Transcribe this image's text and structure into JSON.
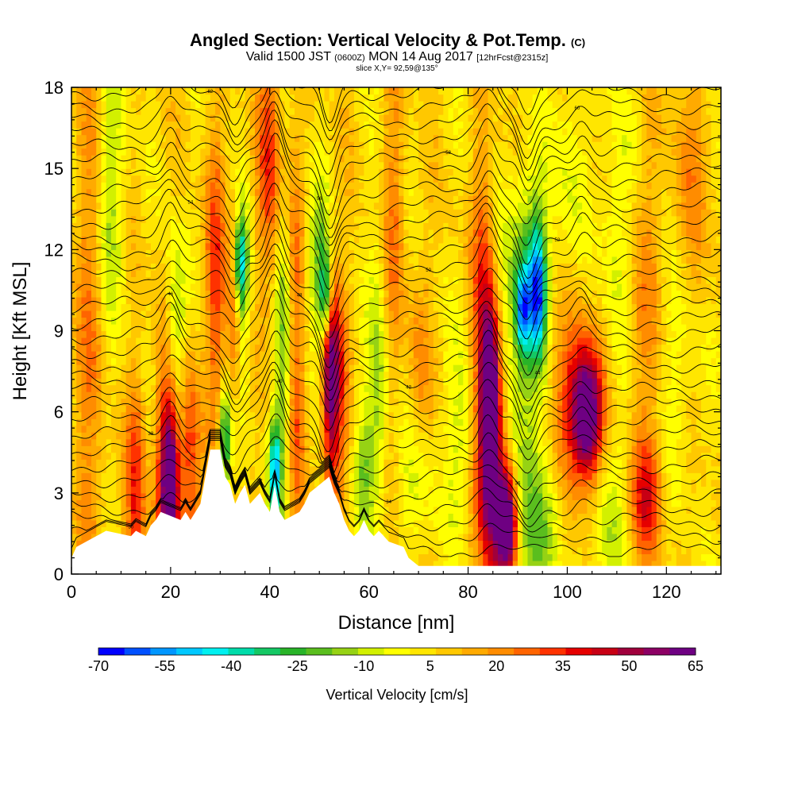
{
  "chart_data": {
    "type": "heatmap",
    "title": {
      "main": "Angled Section: Vertical Velocity & Pot.Temp.",
      "main_unit": "(C)",
      "valid_a": "Valid 1500 JST",
      "valid_b": "(0600Z)",
      "valid_c": "MON 14 Aug 2017",
      "valid_d": "[12hrFcst@2315z]",
      "slice": "slice X,Y= 92,59@135°"
    },
    "xlabel": "Distance [nm]",
    "ylabel": "Height [Kft MSL]",
    "xlim": [
      0,
      131
    ],
    "ylim": [
      0,
      18
    ],
    "x_ticks": [
      "0",
      "20",
      "40",
      "60",
      "80",
      "100",
      "120"
    ],
    "y_ticks": [
      "0",
      "3",
      "6",
      "9",
      "12",
      "15",
      "18"
    ],
    "colorbar": {
      "label": "Vertical Velocity [cm/s]",
      "tick_labels": [
        "-70",
        "-55",
        "-40",
        "-25",
        "-10",
        "5",
        "20",
        "35",
        "50",
        "65"
      ],
      "colors": [
        "#0000ff",
        "#0050ff",
        "#0096ff",
        "#00c8ff",
        "#00f0f0",
        "#00dcaa",
        "#14c864",
        "#28b428",
        "#5abe1e",
        "#96d214",
        "#d2f000",
        "#ffff00",
        "#ffe600",
        "#ffc800",
        "#ffaa00",
        "#ff8c00",
        "#ff6400",
        "#ff3200",
        "#e60000",
        "#c80014",
        "#a0003c",
        "#8c0064",
        "#6e0082"
      ]
    },
    "terrain_kft": [
      [
        0,
        0.6
      ],
      [
        1,
        1
      ],
      [
        5,
        1.4
      ],
      [
        7,
        1.6
      ],
      [
        12,
        1.4
      ],
      [
        13,
        1.6
      ],
      [
        15,
        1.4
      ],
      [
        16,
        1.8
      ],
      [
        17,
        2
      ],
      [
        18,
        2.3
      ],
      [
        22,
        2
      ],
      [
        23,
        2.3
      ],
      [
        24,
        2
      ],
      [
        26,
        2.6
      ],
      [
        27,
        3.6
      ],
      [
        28,
        4.6
      ],
      [
        30,
        4.6
      ],
      [
        31,
        3.6
      ],
      [
        32,
        3.3
      ],
      [
        33,
        2.6
      ],
      [
        34,
        3
      ],
      [
        35,
        3.3
      ],
      [
        36,
        2.6
      ],
      [
        38,
        3
      ],
      [
        39,
        2.6
      ],
      [
        40,
        2.3
      ],
      [
        41,
        3.3
      ],
      [
        42,
        2.3
      ],
      [
        43,
        2
      ],
      [
        46,
        2.3
      ],
      [
        47,
        2.6
      ],
      [
        48,
        3
      ],
      [
        50,
        3.3
      ],
      [
        52,
        3.6
      ],
      [
        53,
        3
      ],
      [
        54,
        2.6
      ],
      [
        55,
        2
      ],
      [
        56,
        1.6
      ],
      [
        57,
        1.4
      ],
      [
        58,
        1.6
      ],
      [
        59,
        2
      ],
      [
        60,
        1.6
      ],
      [
        61,
        1.4
      ],
      [
        62,
        1.6
      ],
      [
        63,
        1.4
      ],
      [
        64,
        1.2
      ],
      [
        67,
        1
      ],
      [
        68,
        0.6
      ],
      [
        70,
        0.3
      ],
      [
        131,
        0.3
      ]
    ],
    "isentrope_labels": [
      "30",
      "32",
      "34",
      "36",
      "38",
      "40",
      "42",
      "44",
      "46",
      "48",
      "50",
      "52",
      "54",
      "56",
      "58",
      "60",
      "62",
      "64"
    ],
    "series": [
      {
        "label": "ascent",
        "values_cm_s": [
          [
            [
              4,
              8.5
            ],
            [
              2.2,
              9
            ],
            15
          ],
          [
            [
              13,
              3
            ],
            [
              1.4,
              3
            ],
            28
          ],
          [
            [
              19,
              3.5
            ],
            [
              1.6,
              4
            ],
            32
          ],
          [
            [
              20,
              3.5
            ],
            [
              1.2,
              2
            ],
            48
          ],
          [
            [
              24,
              3.5
            ],
            [
              1.5,
              3.5
            ],
            30
          ],
          [
            [
              29,
              11
            ],
            [
              1.4,
              4
            ],
            24
          ],
          [
            [
              33,
              10
            ],
            [
              1.1,
              2.8
            ],
            36
          ],
          [
            [
              40,
              15
            ],
            [
              1.8,
              3
            ],
            26
          ],
          [
            [
              45,
              11.5
            ],
            [
              1.3,
              3.5
            ],
            18
          ],
          [
            [
              45,
              5.5
            ],
            [
              1.3,
              3
            ],
            20
          ],
          [
            [
              53,
              6.8
            ],
            [
              1.6,
              3.3
            ],
            36
          ],
          [
            [
              52,
              8.5
            ],
            [
              1,
              2.5
            ],
            44
          ],
          [
            [
              65,
              13
            ],
            [
              1.6,
              4
            ],
            16
          ],
          [
            [
              70,
              7
            ],
            [
              1.6,
              3
            ],
            14
          ],
          [
            [
              83,
              12
            ],
            [
              1.6,
              3
            ],
            18
          ],
          [
            [
              84,
              6.3
            ],
            [
              1.9,
              3
            ],
            48
          ],
          [
            [
              84.5,
              6
            ],
            [
              1,
              2
            ],
            60
          ],
          [
            [
              86,
              2.5
            ],
            [
              2.5,
              2.4
            ],
            40
          ],
          [
            [
              88,
              1.9
            ],
            [
              1.4,
              1.3
            ],
            62
          ],
          [
            [
              103,
              6
            ],
            [
              4,
              2.5
            ],
            36
          ],
          [
            [
              104,
              5.8
            ],
            [
              2,
              1.5
            ],
            46
          ],
          [
            [
              116,
              2.8
            ],
            [
              2.2,
              1.6
            ],
            30
          ],
          [
            [
              115,
              10
            ],
            [
              3,
              4
            ],
            14
          ],
          [
            [
              125,
              14
            ],
            [
              3,
              4
            ],
            12
          ]
        ]
      },
      {
        "label": "descent",
        "values_cm_s": [
          [
            [
              8,
              14
            ],
            [
              2,
              4
            ],
            -18
          ],
          [
            [
              21,
              9
            ],
            [
              1.6,
              2.6
            ],
            -24
          ],
          [
            [
              31,
              5
            ],
            [
              0.9,
              1.2
            ],
            -42
          ],
          [
            [
              34,
              10.5
            ],
            [
              1.4,
              2.5
            ],
            -28
          ],
          [
            [
              34,
              11.5
            ],
            [
              0.9,
              1.1
            ],
            -42
          ],
          [
            [
              41,
              3.8
            ],
            [
              0.9,
              1.3
            ],
            -50
          ],
          [
            [
              43,
              8
            ],
            [
              1.4,
              4
            ],
            -24
          ],
          [
            [
              50,
              11.5
            ],
            [
              2,
              2
            ],
            -26
          ],
          [
            [
              51.5,
              10.2
            ],
            [
              0.9,
              1.3
            ],
            -55
          ],
          [
            [
              59,
              4
            ],
            [
              1.5,
              1.8
            ],
            -20
          ],
          [
            [
              62,
              7
            ],
            [
              1.4,
              4
            ],
            -18
          ],
          [
            [
              70,
              3.5
            ],
            [
              2.5,
              2
            ],
            -14
          ],
          [
            [
              79,
              5
            ],
            [
              2.5,
              2.5
            ],
            -14
          ],
          [
            [
              90,
              4
            ],
            [
              2.5,
              3.5
            ],
            -24
          ],
          [
            [
              92,
              11
            ],
            [
              3,
              2.8
            ],
            -30
          ],
          [
            [
              94,
              10.5
            ],
            [
              1.2,
              1.6
            ],
            -48
          ],
          [
            [
              91,
              9.8
            ],
            [
              0.9,
              1.0
            ],
            -40
          ],
          [
            [
              96,
              2
            ],
            [
              3,
              2
            ],
            -22
          ],
          [
            [
              108,
              3
            ],
            [
              2.5,
              3
            ],
            -20
          ],
          [
            [
              110,
              12
            ],
            [
              3,
              4
            ],
            -14
          ],
          [
            [
              100,
              15
            ],
            [
              2,
              3
            ],
            -10
          ],
          [
            [
              123,
              8
            ],
            [
              3,
              3
            ],
            -12
          ]
        ]
      }
    ]
  }
}
